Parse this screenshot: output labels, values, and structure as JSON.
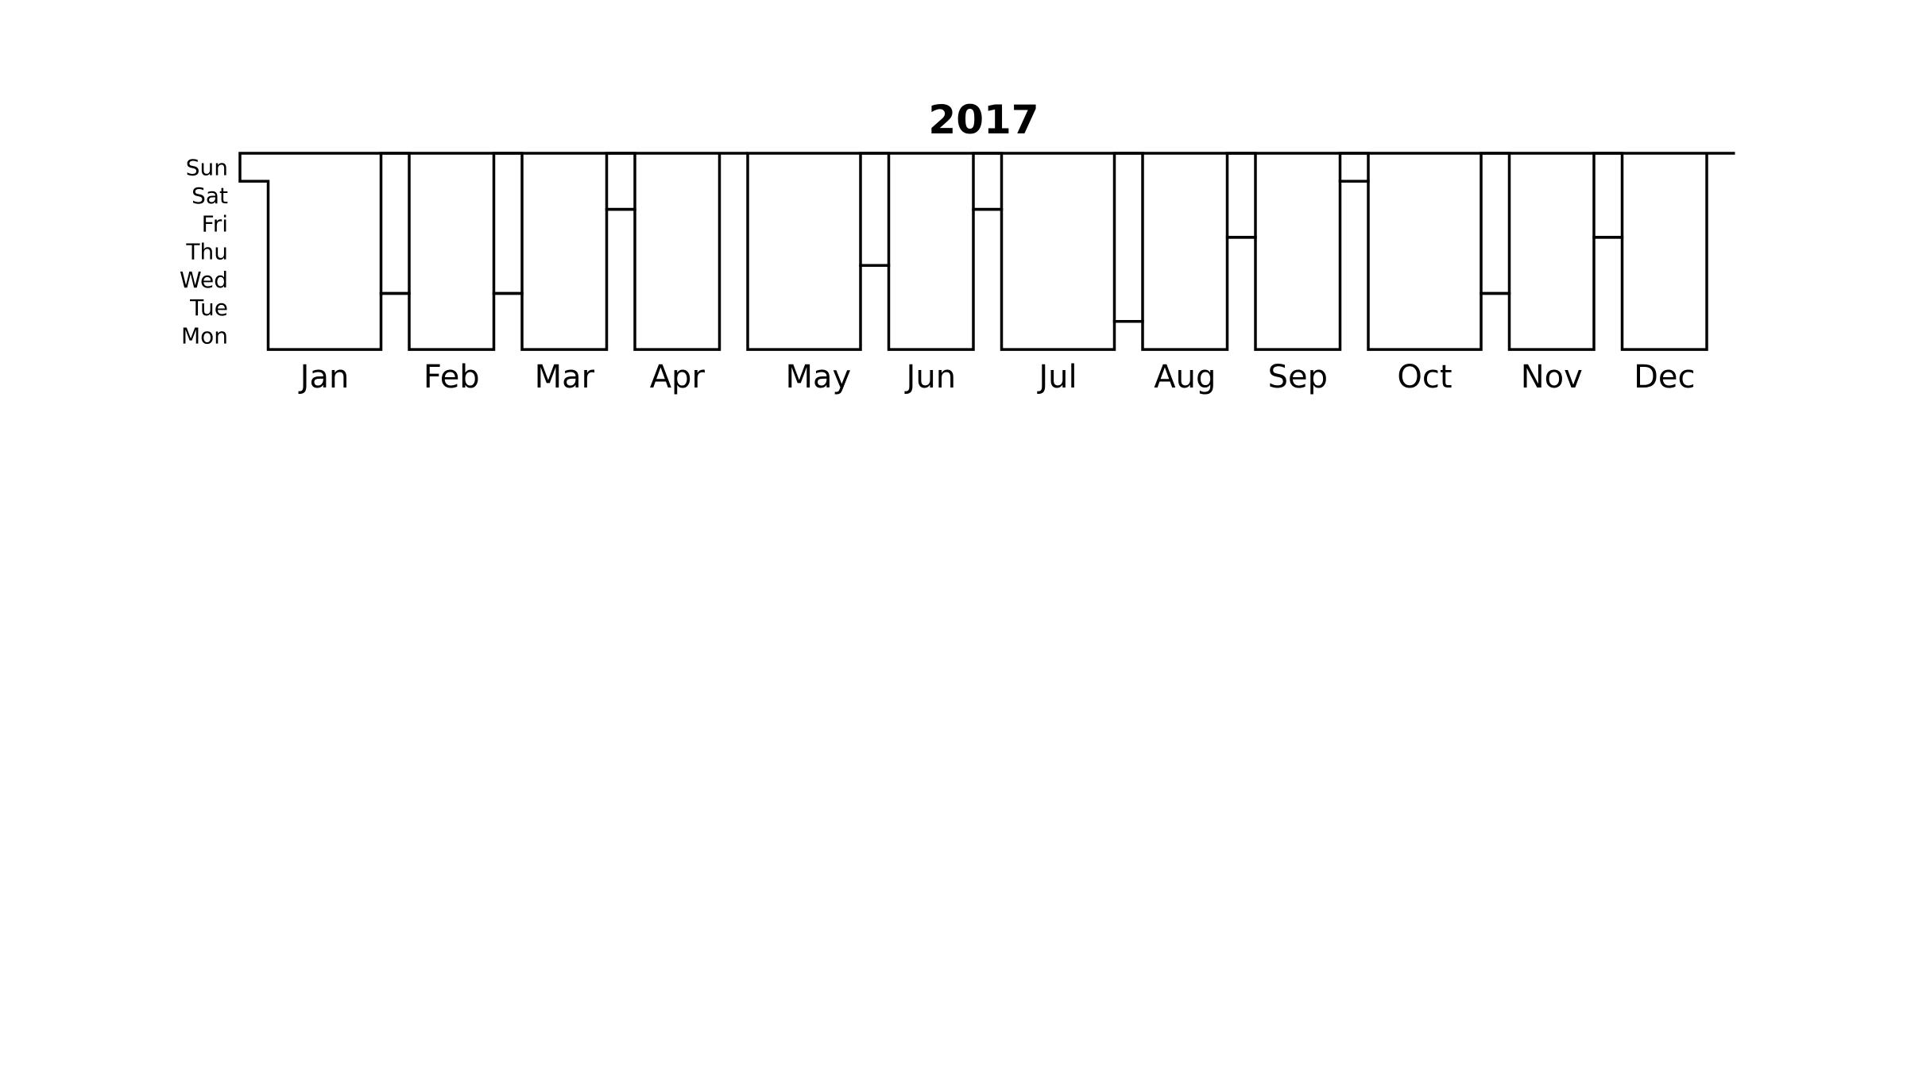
{
  "chart_data": {
    "type": "heatmap",
    "title": "2017",
    "year": 2017,
    "first_weekday_of_year": "Sun",
    "weekday_labels": [
      "Sun",
      "Sat",
      "Fri",
      "Thu",
      "Wed",
      "Tue",
      "Mon"
    ],
    "month_labels": [
      "Jan",
      "Feb",
      "Mar",
      "Apr",
      "May",
      "Jun",
      "Jul",
      "Aug",
      "Sep",
      "Oct",
      "Nov",
      "Dec"
    ],
    "days_in_month": [
      31,
      28,
      31,
      30,
      31,
      30,
      31,
      31,
      30,
      31,
      30,
      31
    ],
    "values": [],
    "grid": false,
    "legend": "none"
  }
}
